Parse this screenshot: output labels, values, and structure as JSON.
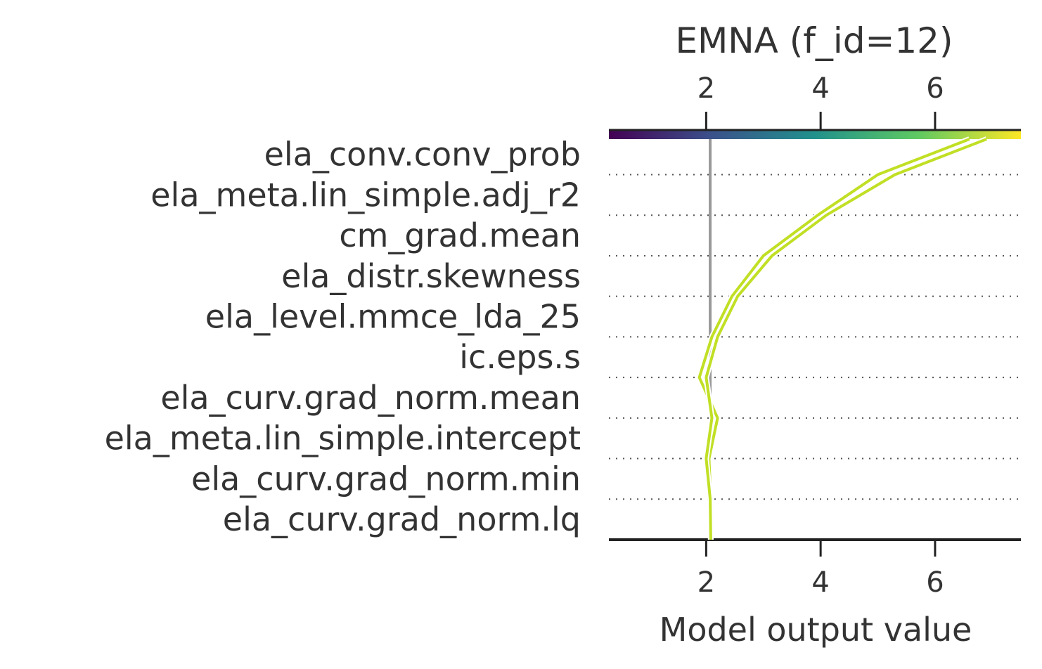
{
  "chart_data": {
    "type": "line",
    "title": "EMNA (f_id=12)",
    "xlabel": "Model output value",
    "ylabel": "",
    "xlim": [
      0.3,
      7.5
    ],
    "xticks": [
      2,
      4,
      6
    ],
    "x_tick_labels": [
      "2",
      "4",
      "6"
    ],
    "base_value": 2.07,
    "features": [
      "ela_curv.grad_norm.lq",
      "ela_curv.grad_norm.min",
      "ela_meta.lin_simple.intercept",
      "ela_curv.grad_norm.mean",
      "ic.eps.s",
      "ela_level.mmce_lda_25",
      "ela_distr.skewness",
      "cm_grad.mean",
      "ela_meta.lin_simple.adj_r2",
      "ela_conv.conv_prob"
    ],
    "series": [
      {
        "values": [
          6.6,
          5.0,
          3.95,
          3.0,
          2.45,
          2.1,
          1.88,
          2.2,
          2.05,
          2.08,
          2.08
        ]
      },
      {
        "values": [
          6.9,
          5.3,
          4.1,
          3.15,
          2.55,
          2.2,
          2.0,
          2.1,
          2.0,
          2.07,
          2.08
        ]
      }
    ],
    "colormap": [
      "#440154",
      "#3b528b",
      "#21918c",
      "#5ec962",
      "#fde725"
    ],
    "line_color": "#c1df24",
    "base_line_color": "#999999",
    "grid": "dotted horizontal",
    "legend": "none"
  }
}
